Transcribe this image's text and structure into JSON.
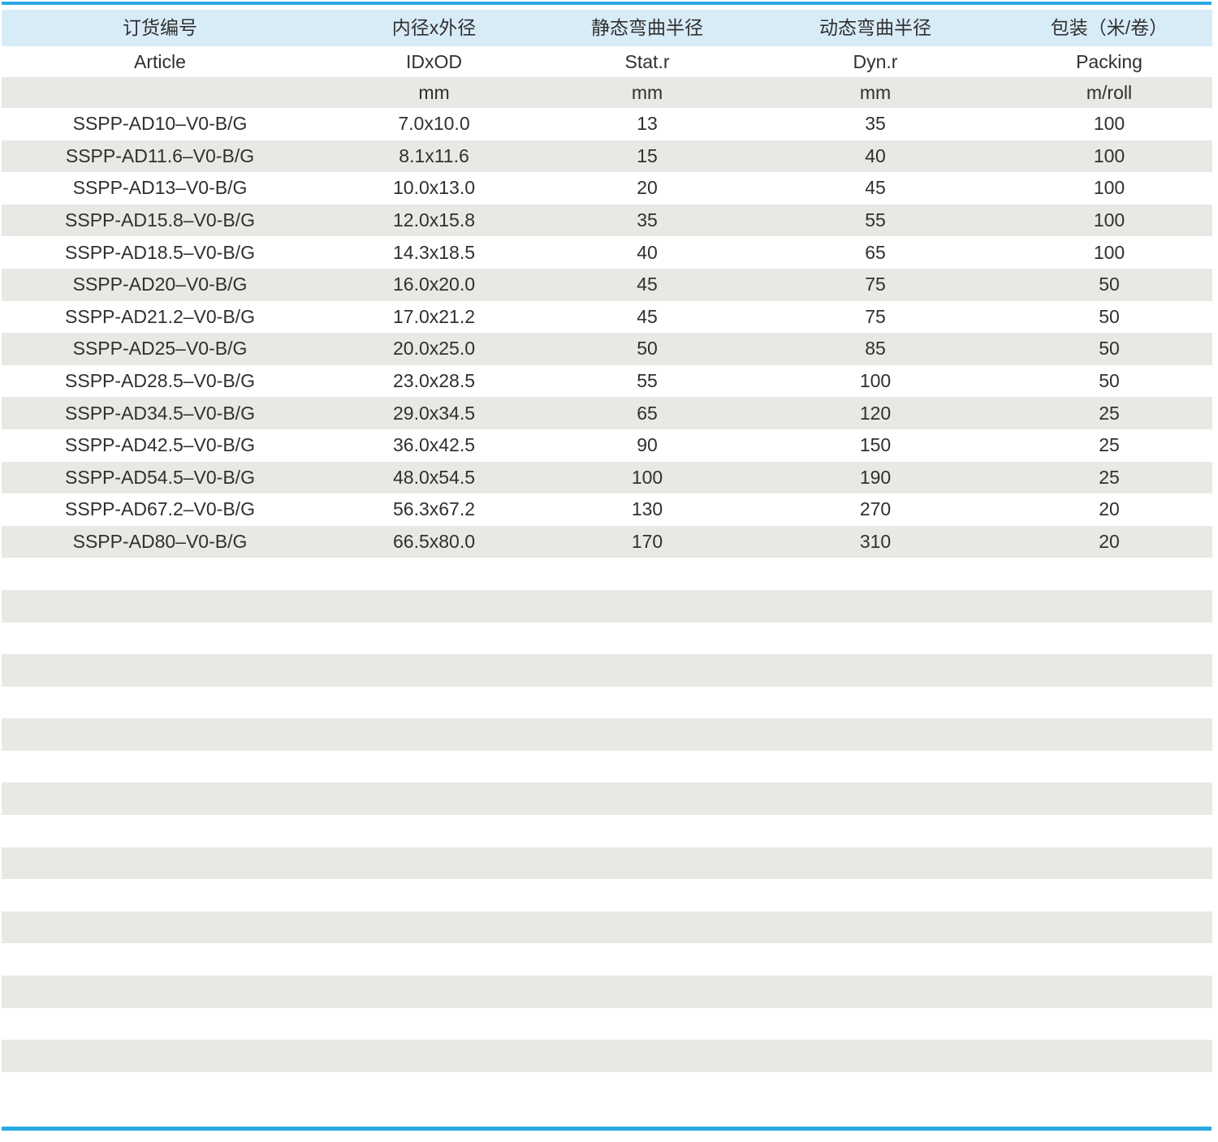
{
  "colors": {
    "accent_blue": "#29a9e2",
    "header_blue": "#d8ecf8",
    "stripe_gray": "#e9e8e4",
    "text": "#303030"
  },
  "table": {
    "columns": [
      {
        "zh": "订货编号",
        "en": "Article",
        "unit": ""
      },
      {
        "zh": "内径x外径",
        "en": "IDxOD",
        "unit": "mm"
      },
      {
        "zh": "静态弯曲半径",
        "en": "Stat.r",
        "unit": "mm"
      },
      {
        "zh": "动态弯曲半径",
        "en": "Dyn.r",
        "unit": "mm"
      },
      {
        "zh": "包装（米/卷）",
        "en": "Packing",
        "unit": "m/roll"
      }
    ],
    "rows": [
      [
        "SSPP-AD10–V0-B/G",
        "7.0x10.0",
        "13",
        "35",
        "100"
      ],
      [
        "SSPP-AD11.6–V0-B/G",
        "8.1x11.6",
        "15",
        "40",
        "100"
      ],
      [
        "SSPP-AD13–V0-B/G",
        "10.0x13.0",
        "20",
        "45",
        "100"
      ],
      [
        "SSPP-AD15.8–V0-B/G",
        "12.0x15.8",
        "35",
        "55",
        "100"
      ],
      [
        "SSPP-AD18.5–V0-B/G",
        "14.3x18.5",
        "40",
        "65",
        "100"
      ],
      [
        "SSPP-AD20–V0-B/G",
        "16.0x20.0",
        "45",
        "75",
        "50"
      ],
      [
        "SSPP-AD21.2–V0-B/G",
        "17.0x21.2",
        "45",
        "75",
        "50"
      ],
      [
        "SSPP-AD25–V0-B/G",
        "20.0x25.0",
        "50",
        "85",
        "50"
      ],
      [
        "SSPP-AD28.5–V0-B/G",
        "23.0x28.5",
        "55",
        "100",
        "50"
      ],
      [
        "SSPP-AD34.5–V0-B/G",
        "29.0x34.5",
        "65",
        "120",
        "25"
      ],
      [
        "SSPP-AD42.5–V0-B/G",
        "36.0x42.5",
        "90",
        "150",
        "25"
      ],
      [
        "SSPP-AD54.5–V0-B/G",
        "48.0x54.5",
        "100",
        "190",
        "25"
      ],
      [
        "SSPP-AD67.2–V0-B/G",
        "56.3x67.2",
        "130",
        "270",
        "20"
      ],
      [
        "SSPP-AD80–V0-B/G",
        "66.5x80.0",
        "170",
        "310",
        "20"
      ]
    ]
  }
}
